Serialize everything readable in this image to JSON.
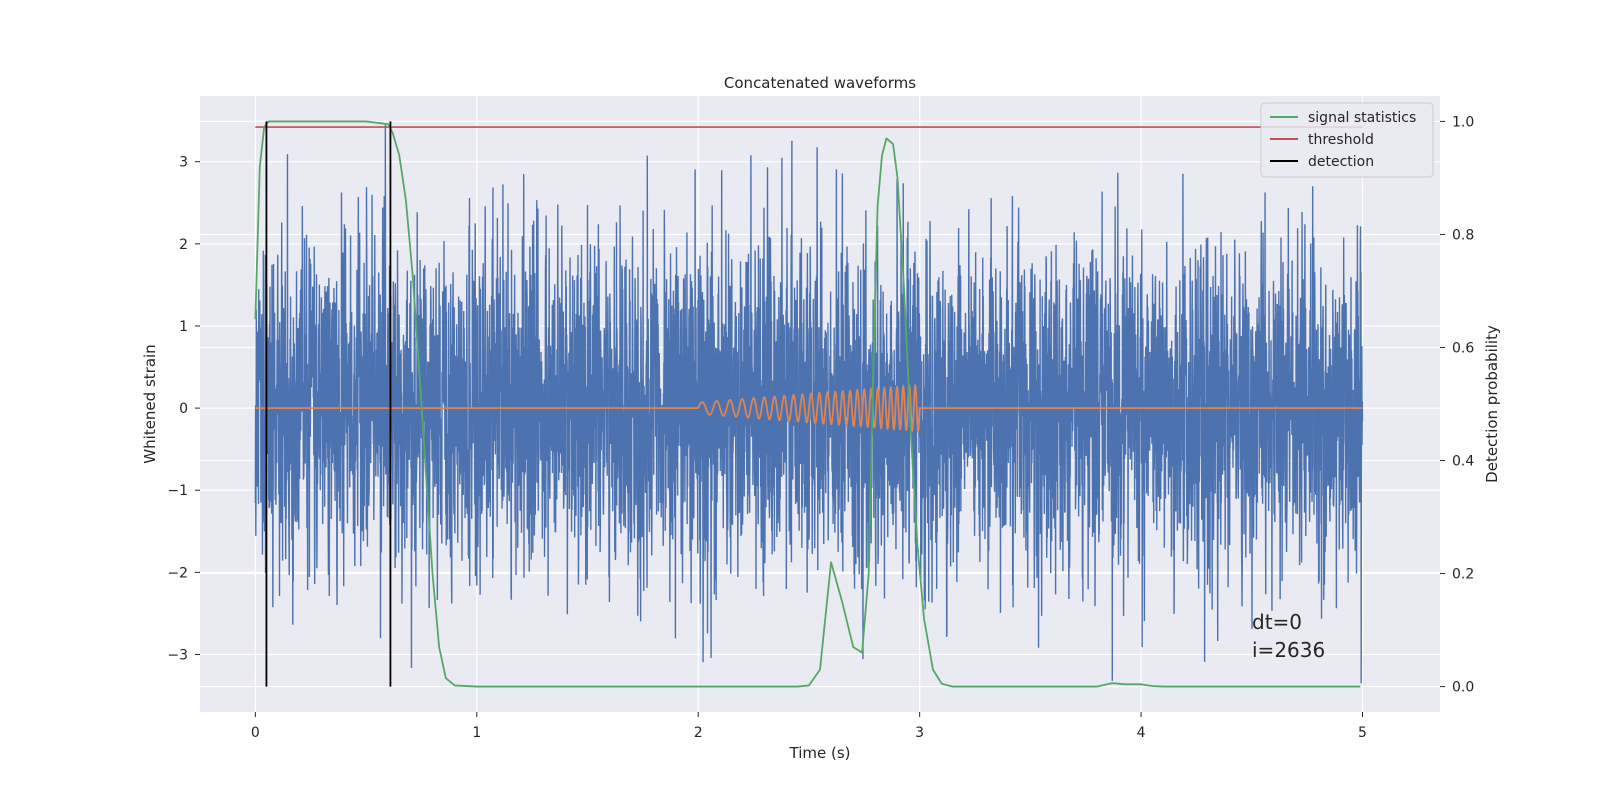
{
  "chart_data": {
    "type": "line",
    "title": "Concatenated waveforms",
    "xlabel": "Time (s)",
    "ylabel": "Whitened strain",
    "y2label": "Detection probability",
    "xlim": [
      -0.25,
      5.35
    ],
    "ylim": [
      -3.7,
      3.8
    ],
    "y2lim": [
      -0.045,
      1.045
    ],
    "xticks": [
      0,
      1,
      2,
      3,
      4,
      5
    ],
    "xtick_labels": [
      "0",
      "1",
      "2",
      "3",
      "4",
      "5"
    ],
    "yticks": [
      -3,
      -2,
      -1,
      0,
      1,
      2,
      3
    ],
    "ytick_labels": [
      "−3",
      "−2",
      "−1",
      "0",
      "1",
      "2",
      "3"
    ],
    "y2ticks": [
      0,
      0.2,
      0.4,
      0.6,
      0.8,
      1.0
    ],
    "y2tick_labels": [
      "0.0",
      "0.2",
      "0.4",
      "0.6",
      "0.8",
      "1.0"
    ],
    "grid": true,
    "legend_position": "top-right",
    "noise": {
      "x_range": [
        0,
        5
      ],
      "typical_amplitude": 1.0,
      "max_y": 3.45,
      "min_y": -3.35
    },
    "series": [
      {
        "name": "signal statistics",
        "axis": "right",
        "x": [
          0.0,
          0.02,
          0.04,
          0.06,
          0.08,
          0.1,
          0.5,
          0.6,
          0.62,
          0.65,
          0.68,
          0.71,
          0.74,
          0.77,
          0.8,
          0.83,
          0.86,
          0.9,
          1.0,
          2.0,
          2.45,
          2.5,
          2.55,
          2.6,
          2.65,
          2.7,
          2.74,
          2.77,
          2.79,
          2.81,
          2.83,
          2.85,
          2.88,
          2.9,
          2.93,
          2.96,
          2.99,
          3.02,
          3.06,
          3.1,
          3.15,
          3.3,
          3.8,
          3.87,
          3.93,
          4.0,
          4.05,
          4.1,
          4.99
        ],
        "values": [
          0.65,
          0.92,
          0.99,
          1.0,
          1.0,
          1.0,
          1.0,
          0.995,
          0.98,
          0.94,
          0.86,
          0.73,
          0.56,
          0.38,
          0.2,
          0.07,
          0.015,
          0.002,
          0.0,
          0.0,
          0.0,
          0.002,
          0.03,
          0.22,
          0.15,
          0.07,
          0.06,
          0.2,
          0.55,
          0.85,
          0.94,
          0.97,
          0.96,
          0.9,
          0.7,
          0.45,
          0.25,
          0.12,
          0.03,
          0.005,
          0.0,
          0.0,
          0.0,
          0.006,
          0.004,
          0.004,
          0.001,
          0.0,
          0.0
        ],
        "color": "#55a868"
      },
      {
        "name": "threshold",
        "axis": "right",
        "x": [
          0,
          5
        ],
        "values": [
          0.99,
          0.99
        ],
        "color": "#c44e52"
      },
      {
        "name": "detection",
        "axis": "right",
        "type": "vlines",
        "x": [
          0.05,
          0.61
        ],
        "ymin": 0.0,
        "ymax": 1.0,
        "color": "#000000"
      },
      {
        "axis": "left",
        "type": "chirp",
        "x_range": [
          2.0,
          3.0
        ],
        "max_amplitude": 0.28,
        "color": "#dd8452"
      }
    ],
    "colors": {
      "noise": "#4c72b0",
      "plot_background": "#eaeaf2",
      "grid": "#ffffff"
    },
    "annotation": {
      "line1": "dt=0",
      "line2": "i=2636"
    }
  }
}
